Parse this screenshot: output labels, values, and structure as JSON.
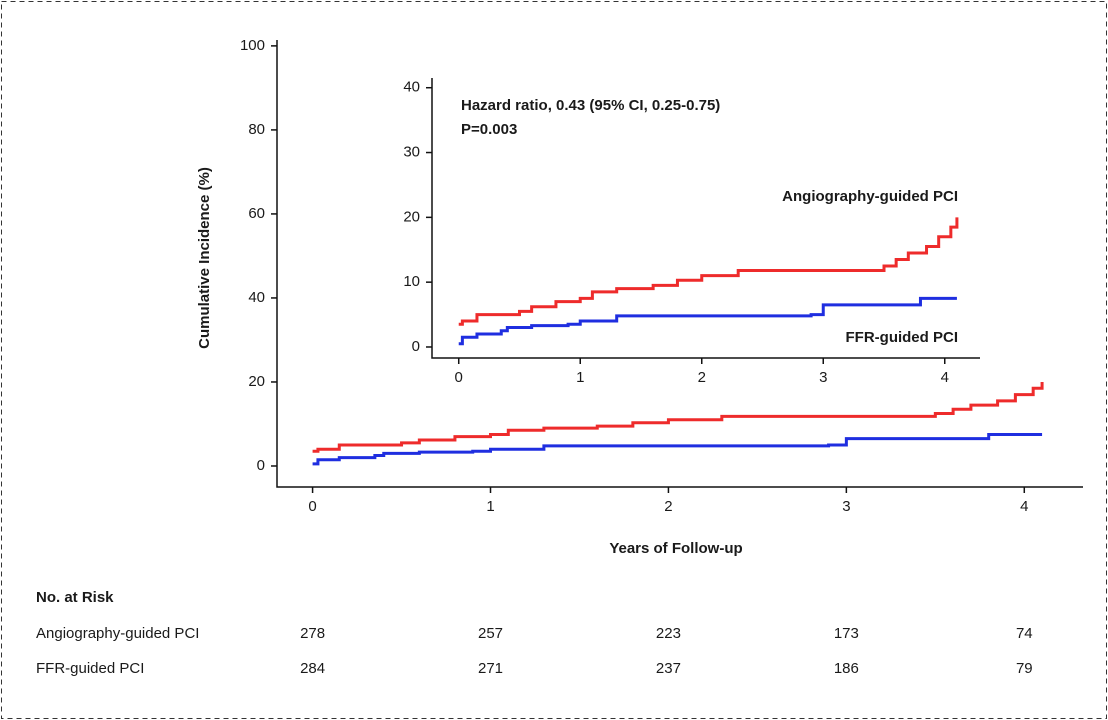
{
  "chart_data": [
    {
      "type": "step",
      "xlabel": "Years of Follow-up",
      "ylabel": "Cumulative Incidence (%)",
      "xlim": [
        -0.2,
        4.33
      ],
      "ylim": [
        -5,
        101.4
      ],
      "xticks": [
        0,
        1,
        2,
        3,
        4
      ],
      "yticks": [
        0,
        20,
        40,
        60,
        80,
        100
      ],
      "x": [
        0,
        0.03,
        0.15,
        0.35,
        0.4,
        0.5,
        0.6,
        0.8,
        0.9,
        1.0,
        1.1,
        1.3,
        1.6,
        1.8,
        2.0,
        2.3,
        2.9,
        3.0,
        3.5,
        3.6,
        3.7,
        3.8,
        3.85,
        3.95,
        4.05,
        4.1
      ],
      "series": [
        {
          "color": "#ee2b2b",
          "values": [
            3.5,
            4,
            5,
            5,
            5,
            5.5,
            6.2,
            7,
            7,
            7.5,
            8.5,
            9,
            9.5,
            10.3,
            11,
            11.8,
            11.8,
            11.8,
            12.5,
            13.5,
            14.5,
            14.5,
            15.5,
            17,
            18.5,
            20
          ]
        },
        {
          "color": "#1f2ee0",
          "values": [
            0.5,
            1.5,
            2,
            2.5,
            3,
            3,
            3.3,
            3.3,
            3.5,
            4,
            4,
            4.8,
            4.8,
            4.8,
            4.8,
            4.8,
            5,
            6.5,
            6.5,
            6.5,
            6.5,
            7.5,
            7.5,
            7.5,
            7.5,
            7.5
          ]
        }
      ]
    },
    {
      "type": "step",
      "annotations": [
        "Hazard ratio, 0.43 (95% CI, 0.25-0.75)",
        "P=0.003"
      ],
      "xlim": [
        -0.22,
        4.29
      ],
      "ylim": [
        -1.7,
        41.5
      ],
      "xticks": [
        0,
        1,
        2,
        3,
        4
      ],
      "yticks": [
        0,
        10,
        20,
        30,
        40
      ],
      "x": [
        0,
        0.03,
        0.15,
        0.35,
        0.4,
        0.5,
        0.6,
        0.8,
        0.9,
        1.0,
        1.1,
        1.3,
        1.6,
        1.8,
        2.0,
        2.3,
        2.9,
        3.0,
        3.5,
        3.6,
        3.7,
        3.8,
        3.85,
        3.95,
        4.05,
        4.1
      ],
      "series": [
        {
          "name": "Angiography-guided PCI",
          "color": "#ee2b2b",
          "values": [
            3.5,
            4,
            5,
            5,
            5,
            5.5,
            6.2,
            7,
            7,
            7.5,
            8.5,
            9,
            9.5,
            10.3,
            11,
            11.8,
            11.8,
            11.8,
            12.5,
            13.5,
            14.5,
            14.5,
            15.5,
            17,
            18.5,
            20
          ]
        },
        {
          "name": "FFR-guided PCI",
          "color": "#1f2ee0",
          "values": [
            0.5,
            1.5,
            2,
            2.5,
            3,
            3,
            3.3,
            3.3,
            3.5,
            4,
            4,
            4.8,
            4.8,
            4.8,
            4.8,
            4.8,
            5,
            6.5,
            6.5,
            6.5,
            6.5,
            7.5,
            7.5,
            7.5,
            7.5,
            7.5
          ]
        }
      ]
    }
  ],
  "risk_table": {
    "title": "No. at Risk",
    "rows": [
      {
        "label": "Angiography-guided PCI",
        "values": [
          278,
          257,
          223,
          173,
          74
        ]
      },
      {
        "label": "FFR-guided PCI",
        "values": [
          284,
          271,
          237,
          186,
          79
        ]
      }
    ]
  }
}
